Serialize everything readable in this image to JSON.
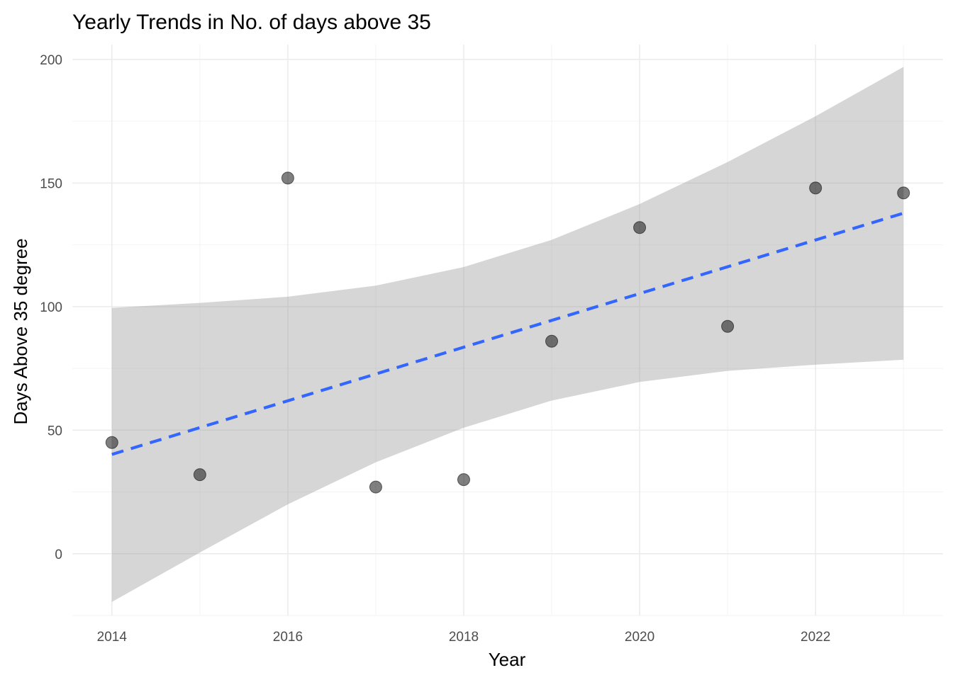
{
  "chart_data": {
    "type": "scatter",
    "title": "Yearly Trends in No. of days above 35",
    "xlabel": "Year",
    "ylabel": "Days Above 35 degree",
    "xlim": [
      2013.55,
      2023.45
    ],
    "ylim": [
      -25,
      206
    ],
    "x_ticks": [
      2014,
      2016,
      2018,
      2020,
      2022
    ],
    "x_tick_labels": [
      "2014",
      "2016",
      "2018",
      "2020",
      "2022"
    ],
    "y_ticks": [
      0,
      50,
      100,
      150,
      200
    ],
    "y_tick_labels": [
      "0",
      "50",
      "100",
      "150",
      "200"
    ],
    "grid": true,
    "points": {
      "x": [
        2014,
        2015,
        2016,
        2017,
        2018,
        2019,
        2020,
        2021,
        2022,
        2023
      ],
      "y": [
        45,
        32,
        152,
        27,
        30,
        86,
        132,
        92,
        148,
        146
      ],
      "color": "#000000"
    },
    "trend_line": {
      "method": "linear",
      "style": "dashed",
      "color": "#3366FF",
      "x": [
        2014,
        2023
      ],
      "y": [
        40.2,
        137.8
      ]
    },
    "confidence_band": {
      "color": "#999999",
      "x": [
        2014,
        2015,
        2016,
        2017,
        2018,
        2019,
        2020,
        2021,
        2022,
        2023
      ],
      "lower": [
        -19.5,
        0.5,
        20,
        37,
        51,
        62,
        69.5,
        74,
        76.5,
        78.5
      ],
      "upper": [
        99.5,
        101.5,
        104,
        108.5,
        116,
        127,
        141.5,
        158.5,
        177,
        197
      ]
    }
  }
}
